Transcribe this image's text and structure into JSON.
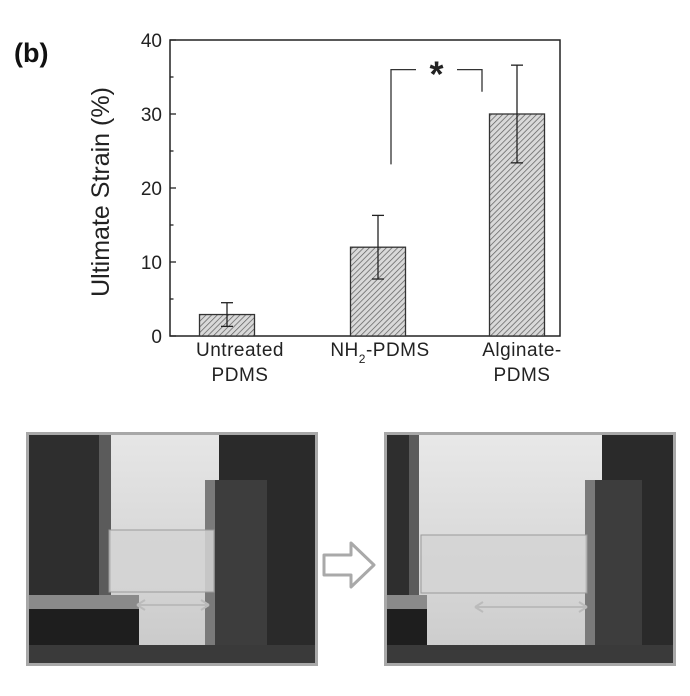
{
  "panel_label": "(b)",
  "chart_data": {
    "type": "bar",
    "title": "",
    "xlabel": "",
    "ylabel": "Ultimate Strain (%)",
    "ylim": [
      0,
      40
    ],
    "yticks": [
      "0",
      "10",
      "20",
      "30",
      "40"
    ],
    "categories": [
      {
        "lines": [
          "Untreated",
          "PDMS"
        ]
      },
      {
        "lines": [
          "NH2-PDMS"
        ],
        "rich": [
          {
            "t": "NH"
          },
          {
            "t": "2",
            "sub": true
          },
          {
            "t": "-PDMS"
          }
        ]
      },
      {
        "lines": [
          "Alginate-",
          "PDMS"
        ]
      }
    ],
    "values": [
      2.9,
      12.0,
      30.0
    ],
    "errors": [
      [
        1.3,
        4.5
      ],
      [
        7.7,
        16.3
      ],
      [
        23.4,
        36.6
      ]
    ],
    "significance": {
      "between": [
        1,
        2
      ],
      "label": "*"
    },
    "bar_pattern": "diagonal-hatch",
    "grid": false
  },
  "photos": {
    "left": {
      "name": "sample-before-stretch"
    },
    "right": {
      "name": "sample-after-stretch"
    }
  },
  "arrow_icon": "right-arrow-icon"
}
